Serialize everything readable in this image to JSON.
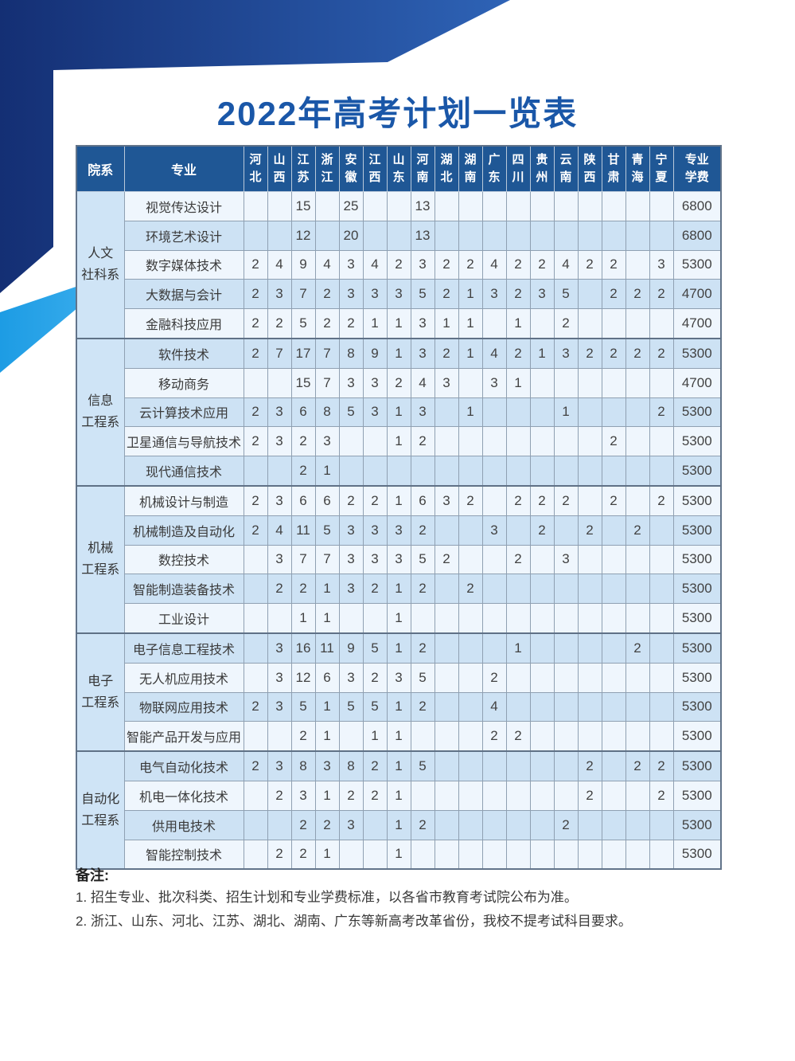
{
  "title": "2022年高考计划一览表",
  "table": {
    "corner_headers": [
      "院系",
      "专业"
    ],
    "province_headers": [
      "河北",
      "山西",
      "江苏",
      "浙江",
      "安徽",
      "江西",
      "山东",
      "河南",
      "湖北",
      "湖南",
      "广东",
      "四川",
      "贵州",
      "云南",
      "陕西",
      "甘肃",
      "青海",
      "宁夏"
    ],
    "fee_header": "专业学费",
    "departments": [
      {
        "name": "人文社科系",
        "name_lines": [
          "人文",
          "社科系"
        ],
        "majors": [
          {
            "major": "视觉传达设计",
            "plans": [
              "",
              "",
              "15",
              "",
              "25",
              "",
              "",
              "13",
              "",
              "",
              "",
              "",
              "",
              "",
              "",
              "",
              "",
              ""
            ],
            "fee": "6800"
          },
          {
            "major": "环境艺术设计",
            "plans": [
              "",
              "",
              "12",
              "",
              "20",
              "",
              "",
              "13",
              "",
              "",
              "",
              "",
              "",
              "",
              "",
              "",
              "",
              ""
            ],
            "fee": "6800"
          },
          {
            "major": "数字媒体技术",
            "plans": [
              "2",
              "4",
              "9",
              "4",
              "3",
              "4",
              "2",
              "3",
              "2",
              "2",
              "4",
              "2",
              "2",
              "4",
              "2",
              "2",
              "",
              "3"
            ],
            "fee": "5300"
          },
          {
            "major": "大数据与会计",
            "plans": [
              "2",
              "3",
              "7",
              "2",
              "3",
              "3",
              "3",
              "5",
              "2",
              "1",
              "3",
              "2",
              "3",
              "5",
              "",
              "2",
              "2",
              "2"
            ],
            "fee": "4700"
          },
          {
            "major": "金融科技应用",
            "plans": [
              "2",
              "2",
              "5",
              "2",
              "2",
              "1",
              "1",
              "3",
              "1",
              "1",
              "",
              "1",
              "",
              "2",
              "",
              "",
              "",
              ""
            ],
            "fee": "4700"
          }
        ]
      },
      {
        "name": "信息工程系",
        "name_lines": [
          "信息",
          "工程系"
        ],
        "majors": [
          {
            "major": "软件技术",
            "plans": [
              "2",
              "7",
              "17",
              "7",
              "8",
              "9",
              "1",
              "3",
              "2",
              "1",
              "4",
              "2",
              "1",
              "3",
              "2",
              "2",
              "2",
              "2"
            ],
            "fee": "5300"
          },
          {
            "major": "移动商务",
            "plans": [
              "",
              "",
              "15",
              "7",
              "3",
              "3",
              "2",
              "4",
              "3",
              "",
              "3",
              "1",
              "",
              "",
              "",
              "",
              "",
              ""
            ],
            "fee": "4700"
          },
          {
            "major": "云计算技术应用",
            "plans": [
              "2",
              "3",
              "6",
              "8",
              "5",
              "3",
              "1",
              "3",
              "",
              "1",
              "",
              "",
              "",
              "1",
              "",
              "",
              "",
              "2"
            ],
            "fee": "5300"
          },
          {
            "major": "卫星通信与导航技术",
            "plans": [
              "2",
              "3",
              "2",
              "3",
              "",
              "",
              "1",
              "2",
              "",
              "",
              "",
              "",
              "",
              "",
              "",
              "2",
              "",
              ""
            ],
            "fee": "5300"
          },
          {
            "major": "现代通信技术",
            "plans": [
              "",
              "",
              "2",
              "1",
              "",
              "",
              "",
              "",
              "",
              "",
              "",
              "",
              "",
              "",
              "",
              "",
              "",
              ""
            ],
            "fee": "5300"
          }
        ]
      },
      {
        "name": "机械工程系",
        "name_lines": [
          "机械",
          "工程系"
        ],
        "majors": [
          {
            "major": "机械设计与制造",
            "plans": [
              "2",
              "3",
              "6",
              "6",
              "2",
              "2",
              "1",
              "6",
              "3",
              "2",
              "",
              "2",
              "2",
              "2",
              "",
              "2",
              "",
              "2"
            ],
            "fee": "5300"
          },
          {
            "major": "机械制造及自动化",
            "plans": [
              "2",
              "4",
              "11",
              "5",
              "3",
              "3",
              "3",
              "2",
              "",
              "",
              "3",
              "",
              "2",
              "",
              "2",
              "",
              "2",
              ""
            ],
            "fee": "5300"
          },
          {
            "major": "数控技术",
            "plans": [
              "",
              "3",
              "7",
              "7",
              "3",
              "3",
              "3",
              "5",
              "2",
              "",
              "",
              "2",
              "",
              "3",
              "",
              "",
              "",
              ""
            ],
            "fee": "5300"
          },
          {
            "major": "智能制造装备技术",
            "plans": [
              "",
              "2",
              "2",
              "1",
              "3",
              "2",
              "1",
              "2",
              "",
              "2",
              "",
              "",
              "",
              "",
              "",
              "",
              "",
              ""
            ],
            "fee": "5300"
          },
          {
            "major": "工业设计",
            "plans": [
              "",
              "",
              "1",
              "1",
              "",
              "",
              "1",
              "",
              "",
              "",
              "",
              "",
              "",
              "",
              "",
              "",
              "",
              ""
            ],
            "fee": "5300"
          }
        ]
      },
      {
        "name": "电子工程系",
        "name_lines": [
          "电子",
          "工程系"
        ],
        "majors": [
          {
            "major": "电子信息工程技术",
            "plans": [
              "",
              "3",
              "16",
              "11",
              "9",
              "5",
              "1",
              "2",
              "",
              "",
              "",
              "1",
              "",
              "",
              "",
              "",
              "2",
              ""
            ],
            "fee": "5300"
          },
          {
            "major": "无人机应用技术",
            "plans": [
              "",
              "3",
              "12",
              "6",
              "3",
              "2",
              "3",
              "5",
              "",
              "",
              "2",
              "",
              "",
              "",
              "",
              "",
              "",
              ""
            ],
            "fee": "5300"
          },
          {
            "major": "物联网应用技术",
            "plans": [
              "2",
              "3",
              "5",
              "1",
              "5",
              "5",
              "1",
              "2",
              "",
              "",
              "4",
              "",
              "",
              "",
              "",
              "",
              "",
              ""
            ],
            "fee": "5300"
          },
          {
            "major": "智能产品开发与应用",
            "plans": [
              "",
              "",
              "2",
              "1",
              "",
              "1",
              "1",
              "",
              "",
              "",
              "2",
              "2",
              "",
              "",
              "",
              "",
              "",
              ""
            ],
            "fee": "5300"
          }
        ]
      },
      {
        "name": "自动化工程系",
        "name_lines": [
          "自动化",
          "工程系"
        ],
        "majors": [
          {
            "major": "电气自动化技术",
            "plans": [
              "2",
              "3",
              "8",
              "3",
              "8",
              "2",
              "1",
              "5",
              "",
              "",
              "",
              "",
              "",
              "",
              "2",
              "",
              "2",
              "2"
            ],
            "fee": "5300"
          },
          {
            "major": "机电一体化技术",
            "plans": [
              "",
              "2",
              "3",
              "1",
              "2",
              "2",
              "1",
              "",
              "",
              "",
              "",
              "",
              "",
              "",
              "2",
              "",
              "",
              "2"
            ],
            "fee": "5300"
          },
          {
            "major": "供用电技术",
            "plans": [
              "",
              "",
              "2",
              "2",
              "3",
              "",
              "1",
              "2",
              "",
              "",
              "",
              "",
              "",
              "2",
              "",
              "",
              "",
              ""
            ],
            "fee": "5300"
          },
          {
            "major": "智能控制技术",
            "plans": [
              "",
              "2",
              "2",
              "1",
              "",
              "",
              "1",
              "",
              "",
              "",
              "",
              "",
              "",
              "",
              "",
              "",
              "",
              ""
            ],
            "fee": "5300"
          }
        ]
      }
    ]
  },
  "notes": {
    "label": "备注:",
    "items": [
      "1.  招生专业、批次科类、招生计划和专业学费标准，以各省市教育考试院公布为准。",
      "2.  浙江、山东、河北、江苏、湖北、湖南、广东等新高考改革省份，我校不提考试科目要求。"
    ]
  },
  "colors": {
    "accent_dark_blue": "#1c3f8e",
    "accent_bright_blue": "#1d9ce4",
    "header_bg": "#1f5795",
    "row_light": "#eff6fd",
    "row_blue": "#cde2f4",
    "title_color": "#1a57a8"
  }
}
